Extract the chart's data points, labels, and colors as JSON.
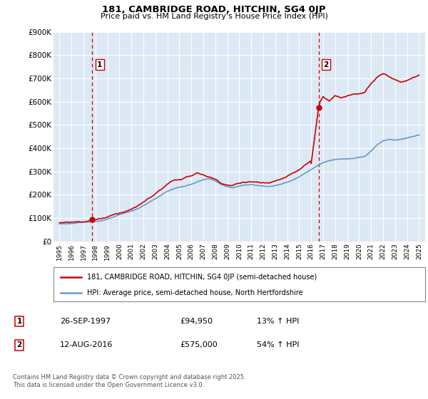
{
  "title": "181, CAMBRIDGE ROAD, HITCHIN, SG4 0JP",
  "subtitle": "Price paid vs. HM Land Registry's House Price Index (HPI)",
  "legend_line1": "181, CAMBRIDGE ROAD, HITCHIN, SG4 0JP (semi-detached house)",
  "legend_line2": "HPI: Average price, semi-detached house, North Hertfordshire",
  "footnote": "Contains HM Land Registry data © Crown copyright and database right 2025.\nThis data is licensed under the Open Government Licence v3.0.",
  "sale1_date": 1997.74,
  "sale1_price": 94950,
  "sale1_label": "1",
  "sale1_text": "26-SEP-1997",
  "sale1_price_text": "£94,950",
  "sale1_hpi_text": "13% ↑ HPI",
  "sale2_date": 2016.62,
  "sale2_price": 575000,
  "sale2_label": "2",
  "sale2_text": "12-AUG-2016",
  "sale2_price_text": "£575,000",
  "sale2_hpi_text": "54% ↑ HPI",
  "ymax": 900000,
  "yticks": [
    0,
    100000,
    200000,
    300000,
    400000,
    500000,
    600000,
    700000,
    800000,
    900000
  ],
  "ytick_labels": [
    "£0",
    "£100K",
    "£200K",
    "£300K",
    "£400K",
    "£500K",
    "£600K",
    "£700K",
    "£800K",
    "£900K"
  ],
  "xmin": 1994.5,
  "xmax": 2025.5,
  "background_color": "#dce9f5",
  "fig_bg_color": "#ffffff",
  "red_line_color": "#cc0000",
  "blue_line_color": "#6699cc",
  "dashed_line_color": "#cc0000",
  "marker_box_color": "#cc0000",
  "grid_color": "#ffffff",
  "hpi_base": 75000,
  "hpi_data_years": [
    1995,
    1995.5,
    1996,
    1996.5,
    1997,
    1997.5,
    1998,
    1998.5,
    1999,
    1999.5,
    2000,
    2000.5,
    2001,
    2001.5,
    2002,
    2002.5,
    2003,
    2003.5,
    2004,
    2004.5,
    2005,
    2005.5,
    2006,
    2006.5,
    2007,
    2007.5,
    2008,
    2008.5,
    2009,
    2009.5,
    2010,
    2010.5,
    2011,
    2011.5,
    2012,
    2012.5,
    2013,
    2013.5,
    2014,
    2014.5,
    2015,
    2015.5,
    2016,
    2016.5,
    2017,
    2017.5,
    2018,
    2018.5,
    2019,
    2019.5,
    2020,
    2020.5,
    2021,
    2021.5,
    2022,
    2022.5,
    2023,
    2023.5,
    2024,
    2024.5,
    2025
  ],
  "hpi_data_vals": [
    75000,
    76000,
    77500,
    79000,
    81000,
    83000,
    86000,
    90000,
    96000,
    104000,
    113000,
    120000,
    128000,
    138000,
    152000,
    167000,
    182000,
    198000,
    214000,
    224000,
    232000,
    236000,
    244000,
    254000,
    262000,
    266000,
    258000,
    242000,
    232000,
    228000,
    235000,
    240000,
    242000,
    240000,
    236000,
    234000,
    238000,
    245000,
    255000,
    265000,
    278000,
    294000,
    310000,
    325000,
    338000,
    346000,
    352000,
    356000,
    358000,
    360000,
    364000,
    368000,
    390000,
    416000,
    435000,
    442000,
    438000,
    442000,
    448000,
    455000,
    463000
  ],
  "prop_data_years": [
    1995,
    1995.5,
    1996,
    1996.5,
    1997,
    1997.74,
    1998,
    1998.5,
    1999,
    1999.5,
    2000,
    2000.5,
    2001,
    2001.5,
    2002,
    2002.5,
    2003,
    2003.5,
    2004,
    2004.5,
    2005,
    2005.5,
    2006,
    2006.5,
    2007,
    2007.5,
    2008,
    2008.5,
    2009,
    2009.5,
    2010,
    2010.5,
    2011,
    2011.5,
    2012,
    2012.5,
    2013,
    2013.5,
    2014,
    2014.5,
    2015,
    2015.5,
    2016,
    2016.62,
    2017,
    2017.5,
    2018,
    2018.5,
    2019,
    2019.5,
    2020,
    2020.5,
    2021,
    2021.5,
    2022,
    2022.5,
    2023,
    2023.5,
    2024,
    2024.5,
    2025
  ],
  "prop_data_vals": [
    80000,
    82000,
    84000,
    86000,
    88000,
    94950,
    99000,
    104000,
    112000,
    121000,
    131000,
    139000,
    149000,
    160000,
    176000,
    194000,
    213000,
    231000,
    250000,
    262000,
    271000,
    276000,
    285000,
    298000,
    285000,
    278000,
    268000,
    252000,
    245000,
    242000,
    250000,
    256000,
    260000,
    257000,
    253000,
    250000,
    255000,
    263000,
    274000,
    284000,
    299000,
    318000,
    334000,
    575000,
    610000,
    592000,
    620000,
    608000,
    618000,
    625000,
    630000,
    636000,
    670000,
    695000,
    710000,
    698000,
    685000,
    672000,
    675000,
    690000,
    700000
  ]
}
